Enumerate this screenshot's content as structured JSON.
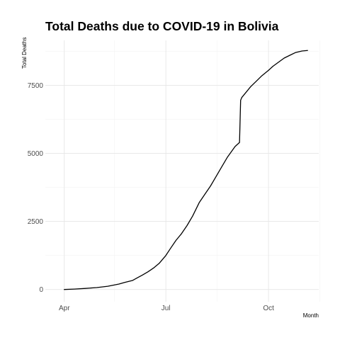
{
  "chart_data": {
    "type": "line",
    "title": "Total Deaths due to COVID-19 in Bolivia",
    "xlabel": "Month",
    "ylabel": "Total Deaths",
    "x_tick_labels": [
      "Apr",
      "Jul",
      "Oct"
    ],
    "y_ticks": [
      0,
      2500,
      5000,
      7500
    ],
    "y_tick_labels": [
      "0",
      "2500",
      "5000",
      "7500"
    ],
    "xlim": [
      "2020-03-15",
      "2020-11-15"
    ],
    "ylim": [
      -450,
      9150
    ],
    "x_major_ticks": [
      "2020-04-01",
      "2020-07-01",
      "2020-10-01"
    ],
    "x_minor_ticks": [
      "2020-05-16",
      "2020-08-16",
      "2020-11-16"
    ],
    "y_minor_ticks": [
      1250,
      3750,
      6250,
      8750
    ],
    "grid": true,
    "legend": "none",
    "series": [
      {
        "color": "#000000",
        "x": [
          "2020-04-01",
          "2020-04-10",
          "2020-04-20",
          "2020-04-30",
          "2020-05-10",
          "2020-05-20",
          "2020-05-25",
          "2020-06-01",
          "2020-06-05",
          "2020-06-10",
          "2020-06-15",
          "2020-06-20",
          "2020-06-25",
          "2020-07-01",
          "2020-07-05",
          "2020-07-10",
          "2020-07-15",
          "2020-07-20",
          "2020-07-25",
          "2020-07-31",
          "2020-08-05",
          "2020-08-10",
          "2020-08-15",
          "2020-08-20",
          "2020-08-25",
          "2020-09-01",
          "2020-09-05",
          "2020-09-06",
          "2020-09-07",
          "2020-09-10",
          "2020-09-15",
          "2020-09-20",
          "2020-09-25",
          "2020-10-01",
          "2020-10-05",
          "2020-10-10",
          "2020-10-15",
          "2020-10-20",
          "2020-10-25",
          "2020-10-31",
          "2020-11-05"
        ],
        "values": [
          0,
          15,
          40,
          70,
          120,
          200,
          260,
          330,
          420,
          530,
          650,
          790,
          960,
          1250,
          1500,
          1800,
          2050,
          2350,
          2700,
          3200,
          3500,
          3800,
          4150,
          4500,
          4850,
          5250,
          5400,
          6950,
          7050,
          7200,
          7450,
          7650,
          7850,
          8050,
          8200,
          8350,
          8500,
          8600,
          8700,
          8760,
          8780
        ]
      }
    ]
  }
}
